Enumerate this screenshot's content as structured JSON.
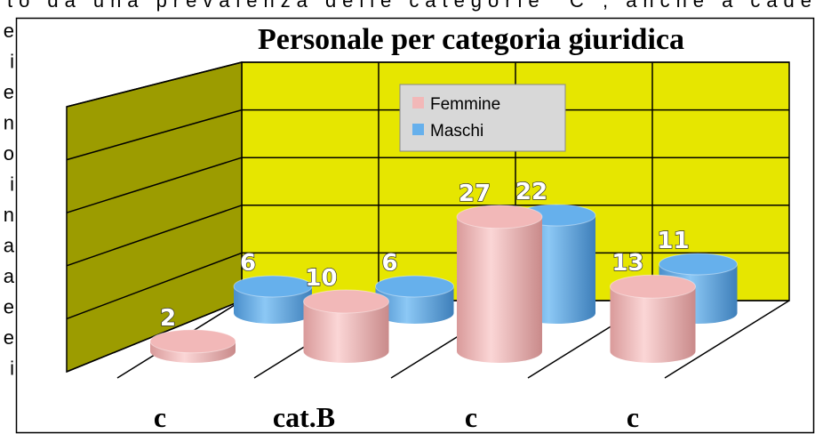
{
  "document_text": {
    "top_line": "to da una prevalenza delle categorie “C”, anche a cade",
    "left_fragments": [
      "e",
      "i",
      "e",
      "n",
      "o",
      "i",
      "n",
      "a",
      "a",
      "e",
      "e",
      "i"
    ]
  },
  "chart_data": {
    "type": "bar",
    "title": "Personale per categoria giuridica",
    "categories": [
      "c",
      "cat.B",
      "c",
      "c"
    ],
    "series": [
      {
        "name": "Femmine",
        "color": "#f2b8b8",
        "values": [
          2,
          10,
          27,
          13
        ]
      },
      {
        "name": "Maschi",
        "color": "#66b0ec",
        "values": [
          6,
          6,
          22,
          11
        ]
      }
    ],
    "ylim": [
      0,
      30
    ],
    "yticks": [
      0,
      6,
      12,
      18,
      24,
      30
    ],
    "grid": true,
    "legend": "top"
  }
}
